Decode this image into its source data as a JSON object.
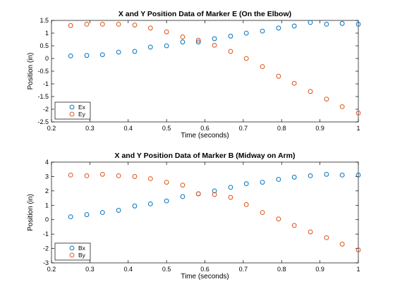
{
  "chart_data": [
    {
      "type": "scatter",
      "title": "X and Y Position Data of Marker E (On the Elbow)",
      "xlabel": "Time (seconds)",
      "ylabel": "Position (in)",
      "xlim": [
        0.2,
        1
      ],
      "ylim": [
        -2.5,
        1.5
      ],
      "xticks": [
        0.2,
        0.3,
        0.4,
        0.5,
        0.6,
        0.7,
        0.8,
        0.9,
        1
      ],
      "xtick_labels": [
        "0.2",
        "0.3",
        "0.4",
        "0.5",
        "0.6",
        "0.7",
        "0.8",
        "0.9",
        "1"
      ],
      "yticks": [
        1.5,
        1,
        0.5,
        0,
        -0.5,
        -1,
        -1.5,
        -2,
        -2.5
      ],
      "ytick_labels": [
        "1.5",
        "1",
        "0.5",
        "0",
        "-0.5",
        "-1",
        "-1.5",
        "-2",
        "-2.5"
      ],
      "grid": false,
      "legend_position": "bottom-left",
      "x": [
        0.25,
        0.292,
        0.333,
        0.375,
        0.417,
        0.458,
        0.5,
        0.542,
        0.583,
        0.625,
        0.667,
        0.708,
        0.75,
        0.792,
        0.833,
        0.875,
        0.917,
        0.958,
        1.0
      ],
      "series": [
        {
          "name": "Ex",
          "color": "#0072BD",
          "values": [
            0.1,
            0.12,
            0.15,
            0.25,
            0.28,
            0.45,
            0.5,
            0.65,
            0.65,
            0.78,
            0.88,
            1.0,
            1.08,
            1.2,
            1.28,
            1.42,
            1.35,
            1.38,
            1.35
          ]
        },
        {
          "name": "Ey",
          "color": "#D95319",
          "values": [
            1.3,
            1.35,
            1.35,
            1.35,
            1.32,
            1.2,
            1.05,
            0.85,
            0.72,
            0.52,
            0.28,
            0.0,
            -0.32,
            -0.7,
            -0.98,
            -1.3,
            -1.6,
            -1.9,
            -2.15
          ]
        }
      ]
    },
    {
      "type": "scatter",
      "title": "X and Y Position Data of Marker B (Midway on Arm)",
      "xlabel": "Time (seconds)",
      "ylabel": "Position (in)",
      "xlim": [
        0.2,
        1
      ],
      "ylim": [
        -3,
        4
      ],
      "xticks": [
        0.2,
        0.3,
        0.4,
        0.5,
        0.6,
        0.7,
        0.8,
        0.9,
        1
      ],
      "xtick_labels": [
        "0.2",
        "0.3",
        "0.4",
        "0.5",
        "0.6",
        "0.7",
        "0.8",
        "0.9",
        "1"
      ],
      "yticks": [
        4,
        3,
        2,
        1,
        0,
        -1,
        -2,
        -3
      ],
      "ytick_labels": [
        "4",
        "3",
        "2",
        "1",
        "0",
        "-1",
        "-2",
        "-3"
      ],
      "grid": false,
      "legend_position": "bottom-left",
      "x": [
        0.25,
        0.292,
        0.333,
        0.375,
        0.417,
        0.458,
        0.5,
        0.542,
        0.583,
        0.625,
        0.667,
        0.708,
        0.75,
        0.792,
        0.833,
        0.875,
        0.917,
        0.958,
        1.0
      ],
      "series": [
        {
          "name": "Bx",
          "color": "#0072BD",
          "values": [
            0.2,
            0.35,
            0.5,
            0.65,
            0.95,
            1.1,
            1.3,
            1.6,
            1.8,
            2.0,
            2.25,
            2.5,
            2.6,
            2.8,
            2.95,
            3.05,
            3.15,
            3.1,
            3.1
          ]
        },
        {
          "name": "By",
          "color": "#D95319",
          "values": [
            3.1,
            3.05,
            3.15,
            3.05,
            3.0,
            2.85,
            2.6,
            2.4,
            1.8,
            1.75,
            1.55,
            1.05,
            0.5,
            0.05,
            -0.4,
            -0.85,
            -1.25,
            -1.7,
            -2.1
          ]
        }
      ]
    }
  ]
}
